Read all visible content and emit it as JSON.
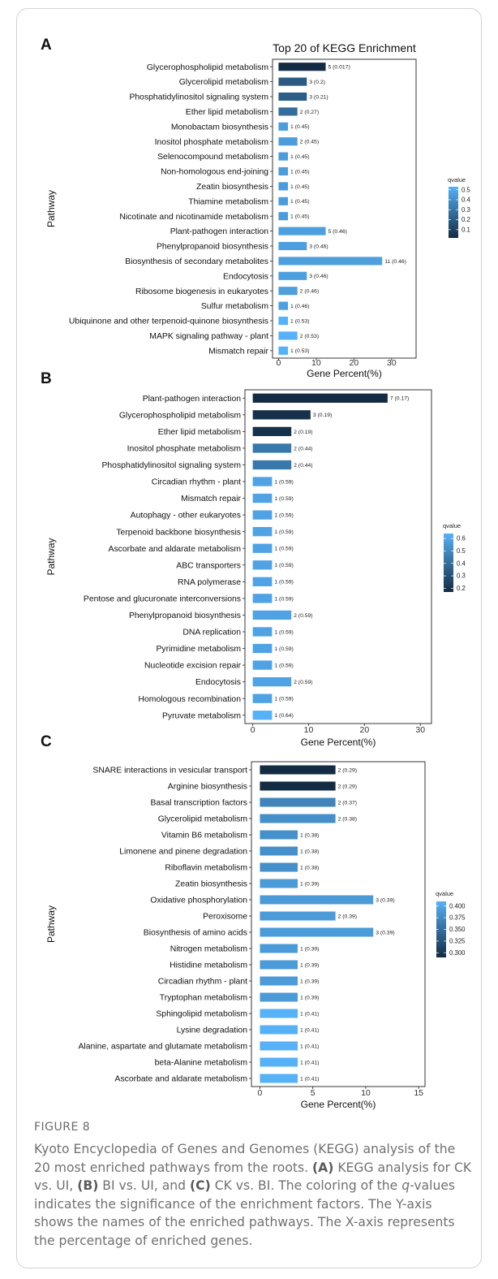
{
  "chart_data": [
    {
      "type": "bar",
      "panel": "A",
      "title": "Top 20 of KEGG Enrichment",
      "xlabel": "Gene Percent(%)",
      "ylabel": "Pathway",
      "xlim": [
        -1.6,
        36.5
      ],
      "xticks": [
        0,
        10,
        20,
        30
      ],
      "legend": {
        "title": "qvalue",
        "ticks": [
          0.5,
          0.4,
          0.3,
          0.2,
          0.1
        ],
        "min": 0.017,
        "max": 0.53,
        "position": "right"
      },
      "categories": [
        "Glycerophospholipid metabolism",
        "Glycerolipid metabolism",
        "Phosphatidylinositol signaling system",
        "Ether lipid metabolism",
        "Monobactam biosynthesis",
        "Inositol phosphate metabolism",
        "Selenocompound metabolism",
        "Non-homologous end-joining",
        "Zeatin biosynthesis",
        "Thiamine metabolism",
        "Nicotinate and nicotinamide metabolism",
        "Plant-pathogen interaction",
        "Phenylpropanoid biosynthesis",
        "Biosynthesis of secondary metabolites",
        "Endocytosis",
        "Ribosome biogenesis in eukaryotes",
        "Sulfur metabolism",
        "Ubiquinone and other terpenoid-quinone biosynthesis",
        "MAPK signaling pathway - plant",
        "Mismatch repair"
      ],
      "values": [
        12.5,
        7.5,
        7.5,
        5,
        2.5,
        5,
        2.5,
        2.5,
        2.5,
        2.5,
        2.5,
        12.5,
        7.5,
        27.5,
        7.5,
        5,
        2.5,
        2.5,
        5,
        2.5
      ],
      "counts": [
        5,
        3,
        3,
        2,
        1,
        2,
        1,
        1,
        1,
        1,
        1,
        5,
        3,
        11,
        3,
        2,
        1,
        1,
        2,
        1
      ],
      "qvalues": [
        0.017,
        0.2,
        0.21,
        0.27,
        0.45,
        0.45,
        0.45,
        0.45,
        0.45,
        0.45,
        0.45,
        0.46,
        0.46,
        0.46,
        0.46,
        0.46,
        0.46,
        0.53,
        0.53,
        0.53
      ],
      "bar_labels": [
        "5 (0.017)",
        "3 (0.2)",
        "3 (0.21)",
        "2 (0.27)",
        "1 (0.45)",
        "2 (0.45)",
        "1 (0.45)",
        "1 (0.45)",
        "1 (0.45)",
        "1 (0.45)",
        "1 (0.45)",
        "5 (0.46)",
        "3 (0.46)",
        "11 (0.46)",
        "3 (0.46)",
        "2 (0.46)",
        "1 (0.46)",
        "1 (0.53)",
        "2 (0.53)",
        "1 (0.53)"
      ]
    },
    {
      "type": "bar",
      "panel": "B",
      "title": "",
      "xlabel": "Gene Percent(%)",
      "ylabel": "Pathway",
      "xlim": [
        -1.4,
        32
      ],
      "xticks": [
        0,
        10,
        20,
        30
      ],
      "legend": {
        "title": "qvalue",
        "ticks": [
          0.6,
          0.5,
          0.4,
          0.3,
          0.2
        ],
        "min": 0.17,
        "max": 0.64,
        "position": "right"
      },
      "categories": [
        "Plant-pathogen interaction",
        "Glycerophospholipid metabolism",
        "Ether lipid metabolism",
        "Inositol phosphate metabolism",
        "Phosphatidylinositol signaling system",
        "Circadian rhythm - plant",
        "Mismatch repair",
        "Autophagy - other eukaryotes",
        "Terpenoid backbone biosynthesis",
        "Ascorbate and aldarate metabolism",
        "ABC transporters",
        "RNA polymerase",
        "Pentose and glucuronate interconversions",
        "Phenylpropanoid biosynthesis",
        "DNA replication",
        "Pyrimidine metabolism",
        "Nucleotide excision repair",
        "Endocytosis",
        "Homologous recombination",
        "Pyruvate metabolism"
      ],
      "values": [
        24.14,
        10.34,
        6.9,
        6.9,
        6.9,
        3.45,
        3.45,
        3.45,
        3.45,
        3.45,
        3.45,
        3.45,
        3.45,
        6.9,
        3.45,
        3.45,
        3.45,
        6.9,
        3.45,
        3.45
      ],
      "counts": [
        7,
        3,
        2,
        2,
        2,
        1,
        1,
        1,
        1,
        1,
        1,
        1,
        1,
        2,
        1,
        1,
        1,
        2,
        1,
        1
      ],
      "qvalues": [
        0.17,
        0.19,
        0.19,
        0.44,
        0.44,
        0.59,
        0.59,
        0.59,
        0.59,
        0.59,
        0.59,
        0.59,
        0.59,
        0.59,
        0.59,
        0.59,
        0.59,
        0.59,
        0.59,
        0.64
      ],
      "bar_labels": [
        "7 (0.17)",
        "3 (0.19)",
        "2 (0.19)",
        "2 (0.44)",
        "2 (0.44)",
        "1 (0.59)",
        "1 (0.59)",
        "1 (0.59)",
        "1 (0.59)",
        "1 (0.59)",
        "1 (0.59)",
        "1 (0.59)",
        "1 (0.59)",
        "2 (0.59)",
        "1 (0.59)",
        "1 (0.59)",
        "1 (0.59)",
        "2 (0.59)",
        "1 (0.59)",
        "1 (0.64)"
      ]
    },
    {
      "type": "bar",
      "panel": "C",
      "title": "",
      "xlabel": "Gene Percent(%)",
      "ylabel": "Pathway",
      "xlim": [
        -0.8,
        15.6
      ],
      "xticks": [
        0,
        5,
        10,
        15
      ],
      "legend": {
        "title": "qvalue",
        "ticks": [
          0.4,
          0.375,
          0.35,
          0.325,
          0.3
        ],
        "tick_labels": [
          "0.400",
          "0.375",
          "0.350",
          "0.325",
          "0.300"
        ],
        "min": 0.29,
        "max": 0.41,
        "position": "right"
      },
      "categories": [
        "SNARE interactions in vesicular transport",
        "Arginine biosynthesis",
        "Basal transcription factors",
        "Glycerolipid metabolism",
        "Vitamin B6 metabolism",
        "Limonene and pinene degradation",
        "Riboflavin metabolism",
        "Zeatin biosynthesis",
        "Oxidative phosphorylation",
        "Peroxisome",
        "Biosynthesis of amino acids",
        "Nitrogen metabolism",
        "Histidine metabolism",
        "Circadian rhythm - plant",
        "Tryptophan metabolism",
        "Sphingolipid metabolism",
        "Lysine degradation",
        "Alanine, aspartate and glutamate metabolism",
        "beta-Alanine metabolism",
        "Ascorbate and aldarate metabolism"
      ],
      "values": [
        7.14,
        7.14,
        7.14,
        7.14,
        3.57,
        3.57,
        3.57,
        3.57,
        10.71,
        7.14,
        10.71,
        3.57,
        3.57,
        3.57,
        3.57,
        3.57,
        3.57,
        3.57,
        3.57,
        3.57
      ],
      "counts": [
        2,
        2,
        2,
        2,
        1,
        1,
        1,
        1,
        3,
        2,
        3,
        1,
        1,
        1,
        1,
        1,
        1,
        1,
        1,
        1
      ],
      "qvalues": [
        0.29,
        0.29,
        0.37,
        0.38,
        0.38,
        0.38,
        0.38,
        0.39,
        0.39,
        0.39,
        0.39,
        0.39,
        0.39,
        0.39,
        0.39,
        0.41,
        0.41,
        0.41,
        0.41,
        0.41
      ],
      "bar_labels": [
        "2 (0.29)",
        "2 (0.29)",
        "2 (0.37)",
        "2 (0.38)",
        "1 (0.38)",
        "1 (0.38)",
        "1 (0.38)",
        "1 (0.39)",
        "3 (0.39)",
        "2 (0.39)",
        "3 (0.39)",
        "1 (0.39)",
        "1 (0.39)",
        "1 (0.39)",
        "1 (0.39)",
        "1 (0.41)",
        "1 (0.41)",
        "1 (0.41)",
        "1 (0.41)",
        "1 (0.41)"
      ]
    }
  ],
  "colors": {
    "low": "#132b43",
    "high": "#56b1f7"
  },
  "figure": {
    "label": "FIGURE 8",
    "segments": [
      {
        "text": "Kyoto Encyclopedia of Genes and Genomes (KEGG) analysis of the 20 most enriched pathways from the roots. "
      },
      {
        "text": "(A)",
        "bold": true
      },
      {
        "text": " KEGG analysis for CK vs. UI, "
      },
      {
        "text": "(B)",
        "bold": true
      },
      {
        "text": " BI vs. UI, and "
      },
      {
        "text": "(C)",
        "bold": true
      },
      {
        "text": " CK vs. BI. The coloring of the "
      },
      {
        "text": "q",
        "italic": true
      },
      {
        "text": "-values indicates the significance of the enrichment factors. The Y-axis shows the names of the enriched pathways. The X-axis represents the percentage of enriched genes."
      }
    ]
  }
}
